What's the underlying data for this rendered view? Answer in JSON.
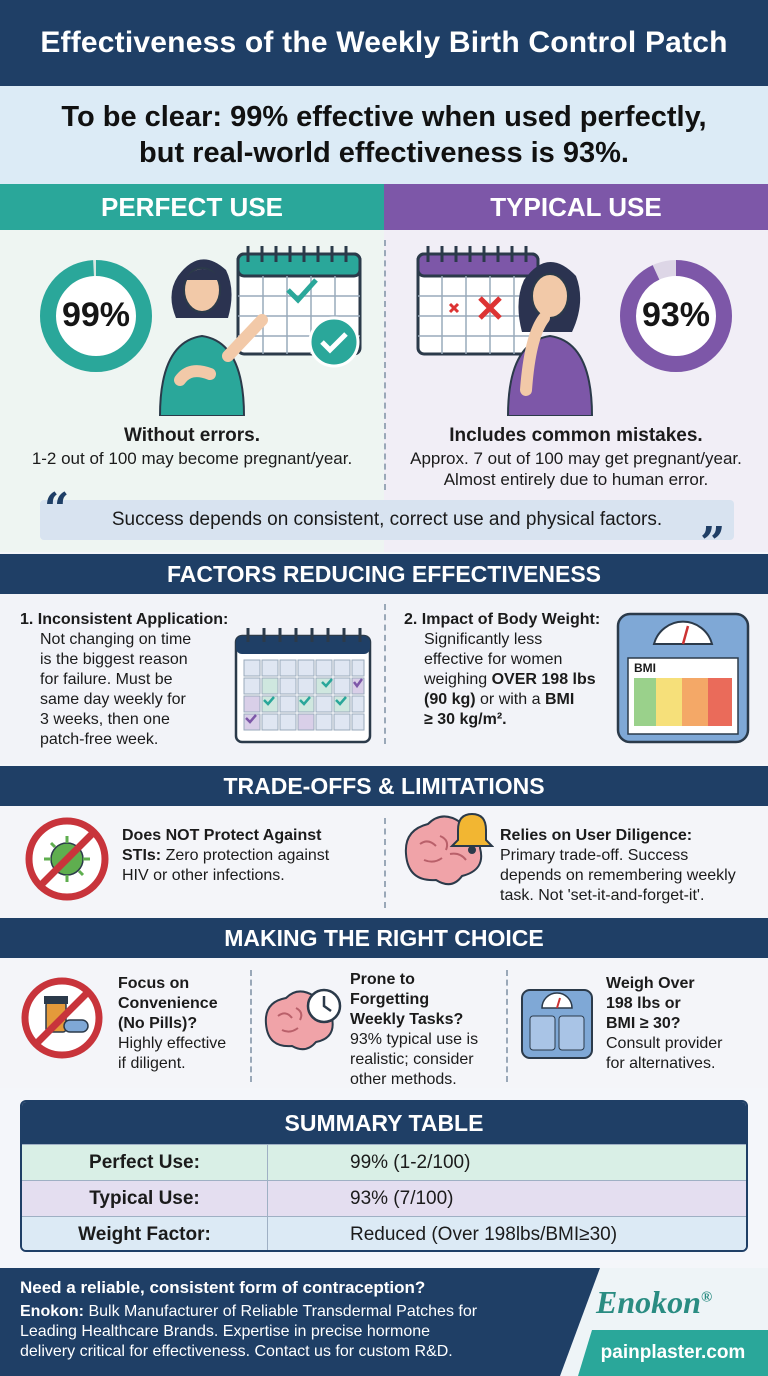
{
  "title": "Effectiveness of the Weekly Birth Control Patch",
  "intro": {
    "line1": "To be clear: 99% effective when used perfectly,",
    "line2": "but real-world effectiveness is 93%."
  },
  "perfect": {
    "header": "PERFECT USE",
    "percent_label": "99%",
    "percent_value": 99,
    "caption_head": "Without errors.",
    "caption_text": "1-2 out of 100 may become pregnant/year."
  },
  "typical": {
    "header": "TYPICAL USE",
    "percent_label": "93%",
    "percent_value": 93,
    "caption_head": "Includes common mistakes.",
    "caption_line1": "Approx. 7 out of 100 may get pregnant/year.",
    "caption_line2": "Almost entirely due to human error."
  },
  "quote": "Success depends on consistent, correct use and physical factors.",
  "factors": {
    "header": "FACTORS REDUCING EFFECTIVENESS",
    "f1_title": "1. Inconsistent Application:",
    "f1_lines": [
      "Not changing on time",
      "is the biggest reason",
      "for failure. Must be",
      "same day weekly for",
      "3 weeks, then one",
      "patch-free week."
    ],
    "f2_title": "2. Impact of Body Weight:",
    "f2_l1": "Significantly less",
    "f2_l2": "effective for women",
    "f2_l3a": "weighing ",
    "f2_l3b": "OVER 198 lbs",
    "f2_l4": "(90 kg)",
    "f2_l4b": " or with a ",
    "f2_l4c": "BMI",
    "f2_l5": "≥ 30 kg/m².",
    "bmi_label": "BMI"
  },
  "tradeoffs": {
    "header": "TRADE-OFFS & LIMITATIONS",
    "t1_bold1": "Does NOT Protect Against",
    "t1_bold2": "STIs:",
    "t1_rest": " Zero protection against",
    "t1_l3": "HIV or other infections.",
    "t2_bold": "Relies on User Diligence:",
    "t2_l2": "Primary trade-off. Success",
    "t2_l3": "depends on remembering weekly",
    "t2_l4": "task. Not 'set-it-and-forget-it'."
  },
  "choice": {
    "header": "MAKING THE RIGHT CHOICE",
    "c1_bold": [
      "Focus on",
      "Convenience",
      "(No Pills)?"
    ],
    "c1_text": [
      "Highly effective",
      "if diligent."
    ],
    "c2_bold": [
      "Prone to",
      "Forgetting",
      "Weekly Tasks?"
    ],
    "c2_text": [
      "93% typical use is",
      "realistic; consider",
      "other methods."
    ],
    "c3_bold": [
      "Weigh Over",
      "198 lbs or",
      "BMI ≥ 30?"
    ],
    "c3_text": [
      "Consult provider",
      "for alternatives."
    ]
  },
  "summary": {
    "header": "SUMMARY TABLE",
    "rows": [
      {
        "label": "Perfect Use:",
        "value": "99% (1-2/100)"
      },
      {
        "label": "Typical Use:",
        "value": "93% (7/100)"
      },
      {
        "label": "Weight Factor:",
        "value": "Reduced (Over 198lbs/BMI≥30)"
      }
    ]
  },
  "footer": {
    "question": "Need a reliable, consistent form of contraception?",
    "brand_inline": "Enokon:",
    "line1": " Bulk Manufacturer of Reliable Transdermal Patches for",
    "line2": "Leading Healthcare Brands. Expertise in precise hormone",
    "line3": "delivery critical for effectiveness. Contact us for custom R&D.",
    "brand": "Enokon",
    "reg": "®",
    "url": "painplaster.com"
  },
  "colors": {
    "navy": "#1f3f66",
    "teal": "#2aa79a",
    "purple": "#7d57a8",
    "red_prohibit": "#c8343b"
  }
}
